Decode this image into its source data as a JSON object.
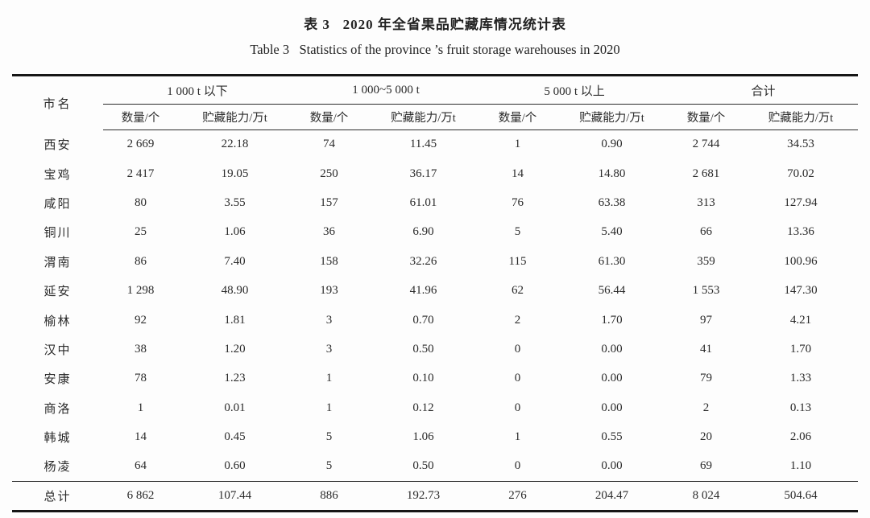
{
  "page": {
    "title_zh": "表 3   2020 年全省果品贮藏库情况统计表",
    "title_en": "Table 3   Statistics of the province ’s fruit storage warehouses in 2020"
  },
  "table": {
    "row_header": "市名",
    "groups": [
      {
        "label": "1 000 t 以下"
      },
      {
        "label": "1 000~5 000 t"
      },
      {
        "label": "5 000 t 以上"
      },
      {
        "label": "合计"
      }
    ],
    "sub_headers": [
      "数量/个",
      "贮藏能力/万t"
    ],
    "rows": [
      {
        "city": "西安",
        "values": [
          "2 669",
          "22.18",
          "74",
          "11.45",
          "1",
          "0.90",
          "2 744",
          "34.53"
        ]
      },
      {
        "city": "宝鸡",
        "values": [
          "2 417",
          "19.05",
          "250",
          "36.17",
          "14",
          "14.80",
          "2 681",
          "70.02"
        ]
      },
      {
        "city": "咸阳",
        "values": [
          "80",
          "3.55",
          "157",
          "61.01",
          "76",
          "63.38",
          "313",
          "127.94"
        ]
      },
      {
        "city": "铜川",
        "values": [
          "25",
          "1.06",
          "36",
          "6.90",
          "5",
          "5.40",
          "66",
          "13.36"
        ]
      },
      {
        "city": "渭南",
        "values": [
          "86",
          "7.40",
          "158",
          "32.26",
          "115",
          "61.30",
          "359",
          "100.96"
        ]
      },
      {
        "city": "延安",
        "values": [
          "1 298",
          "48.90",
          "193",
          "41.96",
          "62",
          "56.44",
          "1 553",
          "147.30"
        ]
      },
      {
        "city": "榆林",
        "values": [
          "92",
          "1.81",
          "3",
          "0.70",
          "2",
          "1.70",
          "97",
          "4.21"
        ]
      },
      {
        "city": "汉中",
        "values": [
          "38",
          "1.20",
          "3",
          "0.50",
          "0",
          "0.00",
          "41",
          "1.70"
        ]
      },
      {
        "city": "安康",
        "values": [
          "78",
          "1.23",
          "1",
          "0.10",
          "0",
          "0.00",
          "79",
          "1.33"
        ]
      },
      {
        "city": "商洛",
        "values": [
          "1",
          "0.01",
          "1",
          "0.12",
          "0",
          "0.00",
          "2",
          "0.13"
        ]
      },
      {
        "city": "韩城",
        "values": [
          "14",
          "0.45",
          "5",
          "1.06",
          "1",
          "0.55",
          "20",
          "2.06"
        ]
      },
      {
        "city": "杨凌",
        "values": [
          "64",
          "0.60",
          "5",
          "0.50",
          "0",
          "0.00",
          "69",
          "1.10"
        ]
      }
    ],
    "total_row": {
      "city": "总计",
      "values": [
        "6 862",
        "107.44",
        "886",
        "192.73",
        "276",
        "204.47",
        "8 024",
        "504.64"
      ]
    }
  }
}
